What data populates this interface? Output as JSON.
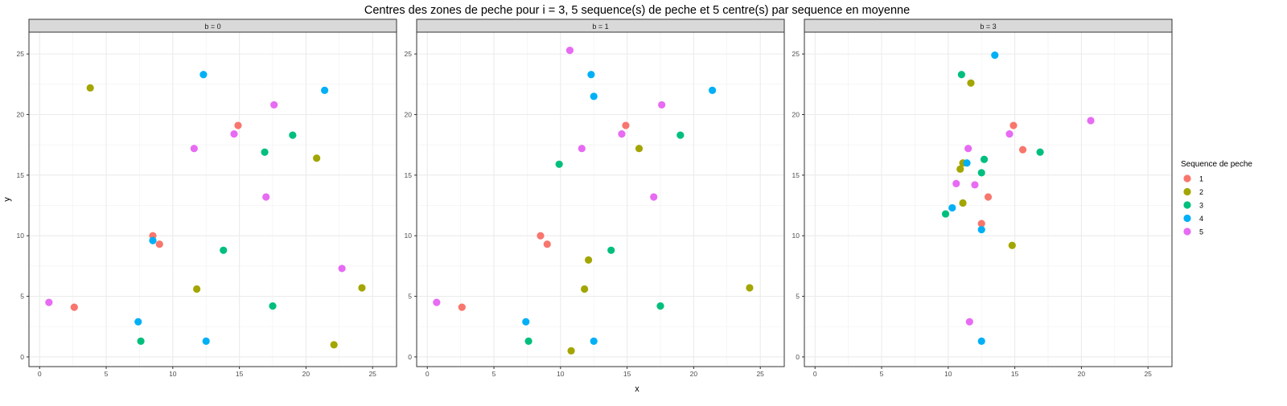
{
  "chart_data": {
    "type": "scatter",
    "title": "Centres des zones de peche pour i = 3, 5 sequence(s) de peche et 5 centre(s) par sequence en moyenne",
    "xlabel": "x",
    "ylabel": "y",
    "xlim": [
      -0.8,
      26.8
    ],
    "ylim": [
      -0.8,
      26.8
    ],
    "x_ticks": [
      "0",
      "5",
      "10",
      "15",
      "20",
      "25"
    ],
    "y_ticks": [
      "0",
      "5",
      "10",
      "15",
      "20",
      "25"
    ],
    "grid": true,
    "legend": {
      "title": "Sequence de peche",
      "placement": "right",
      "entries": [
        {
          "label": "1",
          "color": "#F8766D"
        },
        {
          "label": "2",
          "color": "#A3A500"
        },
        {
          "label": "3",
          "color": "#00BF7D"
        },
        {
          "label": "4",
          "color": "#00B0F6"
        },
        {
          "label": "5",
          "color": "#E76BF3"
        }
      ]
    },
    "panels": [
      {
        "strip": "b = 0",
        "series": [
          {
            "group": "1",
            "points": [
              [
                2.6,
                4.1
              ],
              [
                8.5,
                10.0
              ],
              [
                9.0,
                9.3
              ],
              [
                14.9,
                19.1
              ]
            ]
          },
          {
            "group": "2",
            "points": [
              [
                3.8,
                22.2
              ],
              [
                11.8,
                5.6
              ],
              [
                20.8,
                16.4
              ],
              [
                22.1,
                1.0
              ],
              [
                24.2,
                5.7
              ]
            ]
          },
          {
            "group": "3",
            "points": [
              [
                7.6,
                1.3
              ],
              [
                13.8,
                8.8
              ],
              [
                16.9,
                16.9
              ],
              [
                17.5,
                4.2
              ],
              [
                19.0,
                18.3
              ]
            ]
          },
          {
            "group": "4",
            "points": [
              [
                7.4,
                2.9
              ],
              [
                8.5,
                9.6
              ],
              [
                12.3,
                23.3
              ],
              [
                12.5,
                1.3
              ],
              [
                21.4,
                22.0
              ]
            ]
          },
          {
            "group": "5",
            "points": [
              [
                0.7,
                4.5
              ],
              [
                11.6,
                17.2
              ],
              [
                14.6,
                18.4
              ],
              [
                17.0,
                13.2
              ],
              [
                17.6,
                20.8
              ],
              [
                22.7,
                7.3
              ]
            ]
          }
        ]
      },
      {
        "strip": "b = 1",
        "series": [
          {
            "group": "1",
            "points": [
              [
                2.6,
                4.1
              ],
              [
                8.5,
                10.0
              ],
              [
                9.0,
                9.3
              ],
              [
                14.9,
                19.1
              ]
            ]
          },
          {
            "group": "2",
            "points": [
              [
                10.8,
                0.5
              ],
              [
                11.8,
                5.6
              ],
              [
                12.1,
                8.0
              ],
              [
                15.9,
                17.2
              ],
              [
                24.2,
                5.7
              ]
            ]
          },
          {
            "group": "3",
            "points": [
              [
                7.6,
                1.3
              ],
              [
                9.9,
                15.9
              ],
              [
                13.8,
                8.8
              ],
              [
                17.5,
                4.2
              ],
              [
                19.0,
                18.3
              ]
            ]
          },
          {
            "group": "4",
            "points": [
              [
                7.4,
                2.9
              ],
              [
                12.3,
                23.3
              ],
              [
                12.5,
                21.5
              ],
              [
                12.5,
                1.3
              ],
              [
                21.4,
                22.0
              ]
            ]
          },
          {
            "group": "5",
            "points": [
              [
                0.7,
                4.5
              ],
              [
                10.7,
                25.3
              ],
              [
                11.6,
                17.2
              ],
              [
                14.6,
                18.4
              ],
              [
                17.0,
                13.2
              ],
              [
                17.6,
                20.8
              ]
            ]
          }
        ]
      },
      {
        "strip": "b = 3",
        "series": [
          {
            "group": "1",
            "points": [
              [
                12.5,
                11.0
              ],
              [
                13.0,
                13.2
              ],
              [
                14.9,
                19.1
              ],
              [
                15.6,
                17.1
              ]
            ]
          },
          {
            "group": "2",
            "points": [
              [
                10.9,
                15.5
              ],
              [
                11.1,
                16.0
              ],
              [
                11.1,
                12.7
              ],
              [
                11.7,
                22.6
              ],
              [
                14.8,
                9.2
              ]
            ]
          },
          {
            "group": "3",
            "points": [
              [
                9.8,
                11.8
              ],
              [
                11.0,
                23.3
              ],
              [
                12.5,
                15.2
              ],
              [
                12.7,
                16.3
              ],
              [
                16.9,
                16.9
              ]
            ]
          },
          {
            "group": "4",
            "points": [
              [
                10.3,
                12.3
              ],
              [
                11.4,
                16.0
              ],
              [
                12.5,
                10.5
              ],
              [
                12.5,
                1.3
              ],
              [
                13.5,
                24.9
              ]
            ]
          },
          {
            "group": "5",
            "points": [
              [
                10.6,
                14.3
              ],
              [
                11.5,
                17.2
              ],
              [
                11.6,
                2.9
              ],
              [
                12.0,
                14.2
              ],
              [
                14.6,
                18.4
              ],
              [
                20.7,
                19.5
              ]
            ]
          }
        ]
      }
    ]
  }
}
